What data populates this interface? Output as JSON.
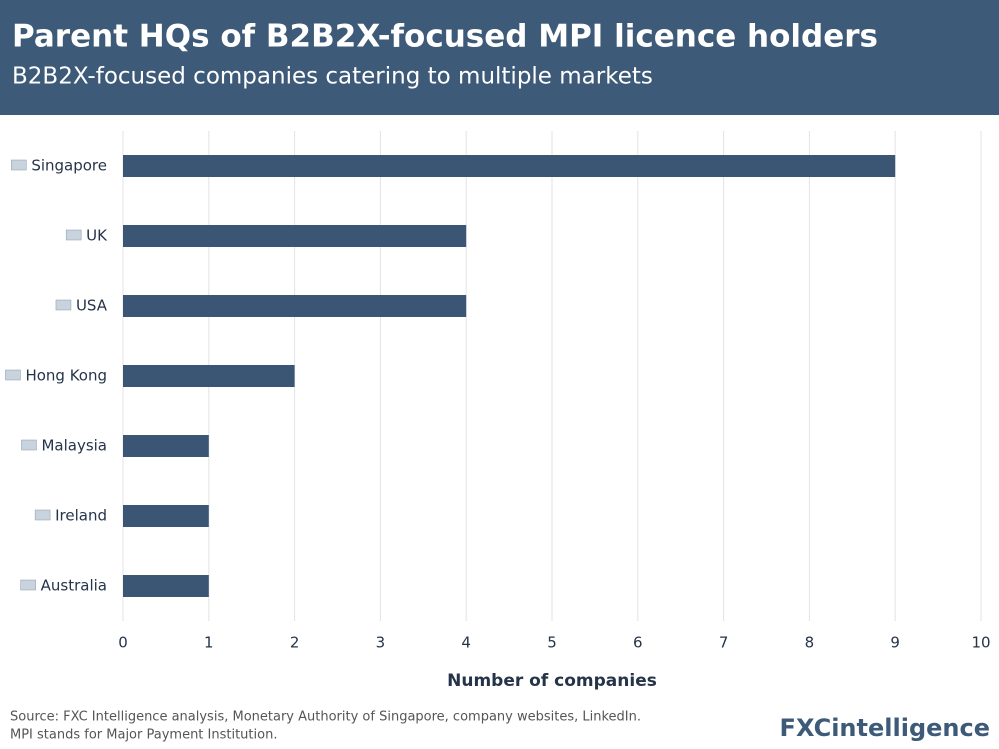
{
  "chart_data": {
    "type": "bar",
    "orientation": "horizontal",
    "title": "Parent HQs of B2B2X-focused MPI licence holders",
    "subtitle": "B2B2X-focused companies catering to multiple markets",
    "categories": [
      "Singapore",
      "UK",
      "USA",
      "Hong Kong",
      "Malaysia",
      "Ireland",
      "Australia"
    ],
    "values": [
      9,
      4,
      4,
      2,
      1,
      1,
      1
    ],
    "color": "#3b5674",
    "xlim": [
      0,
      10
    ],
    "xticks": [
      0,
      1,
      2,
      3,
      4,
      5,
      6,
      7,
      8,
      9,
      10
    ],
    "xlabel": "Number of companies",
    "grid": true,
    "source": "Source: FXC Intelligence analysis, Monetary Authority of Singapore, company websites, LinkedIn.",
    "note": "MPI stands for Major Payment Institution.",
    "logo": "FXCintelligence"
  }
}
